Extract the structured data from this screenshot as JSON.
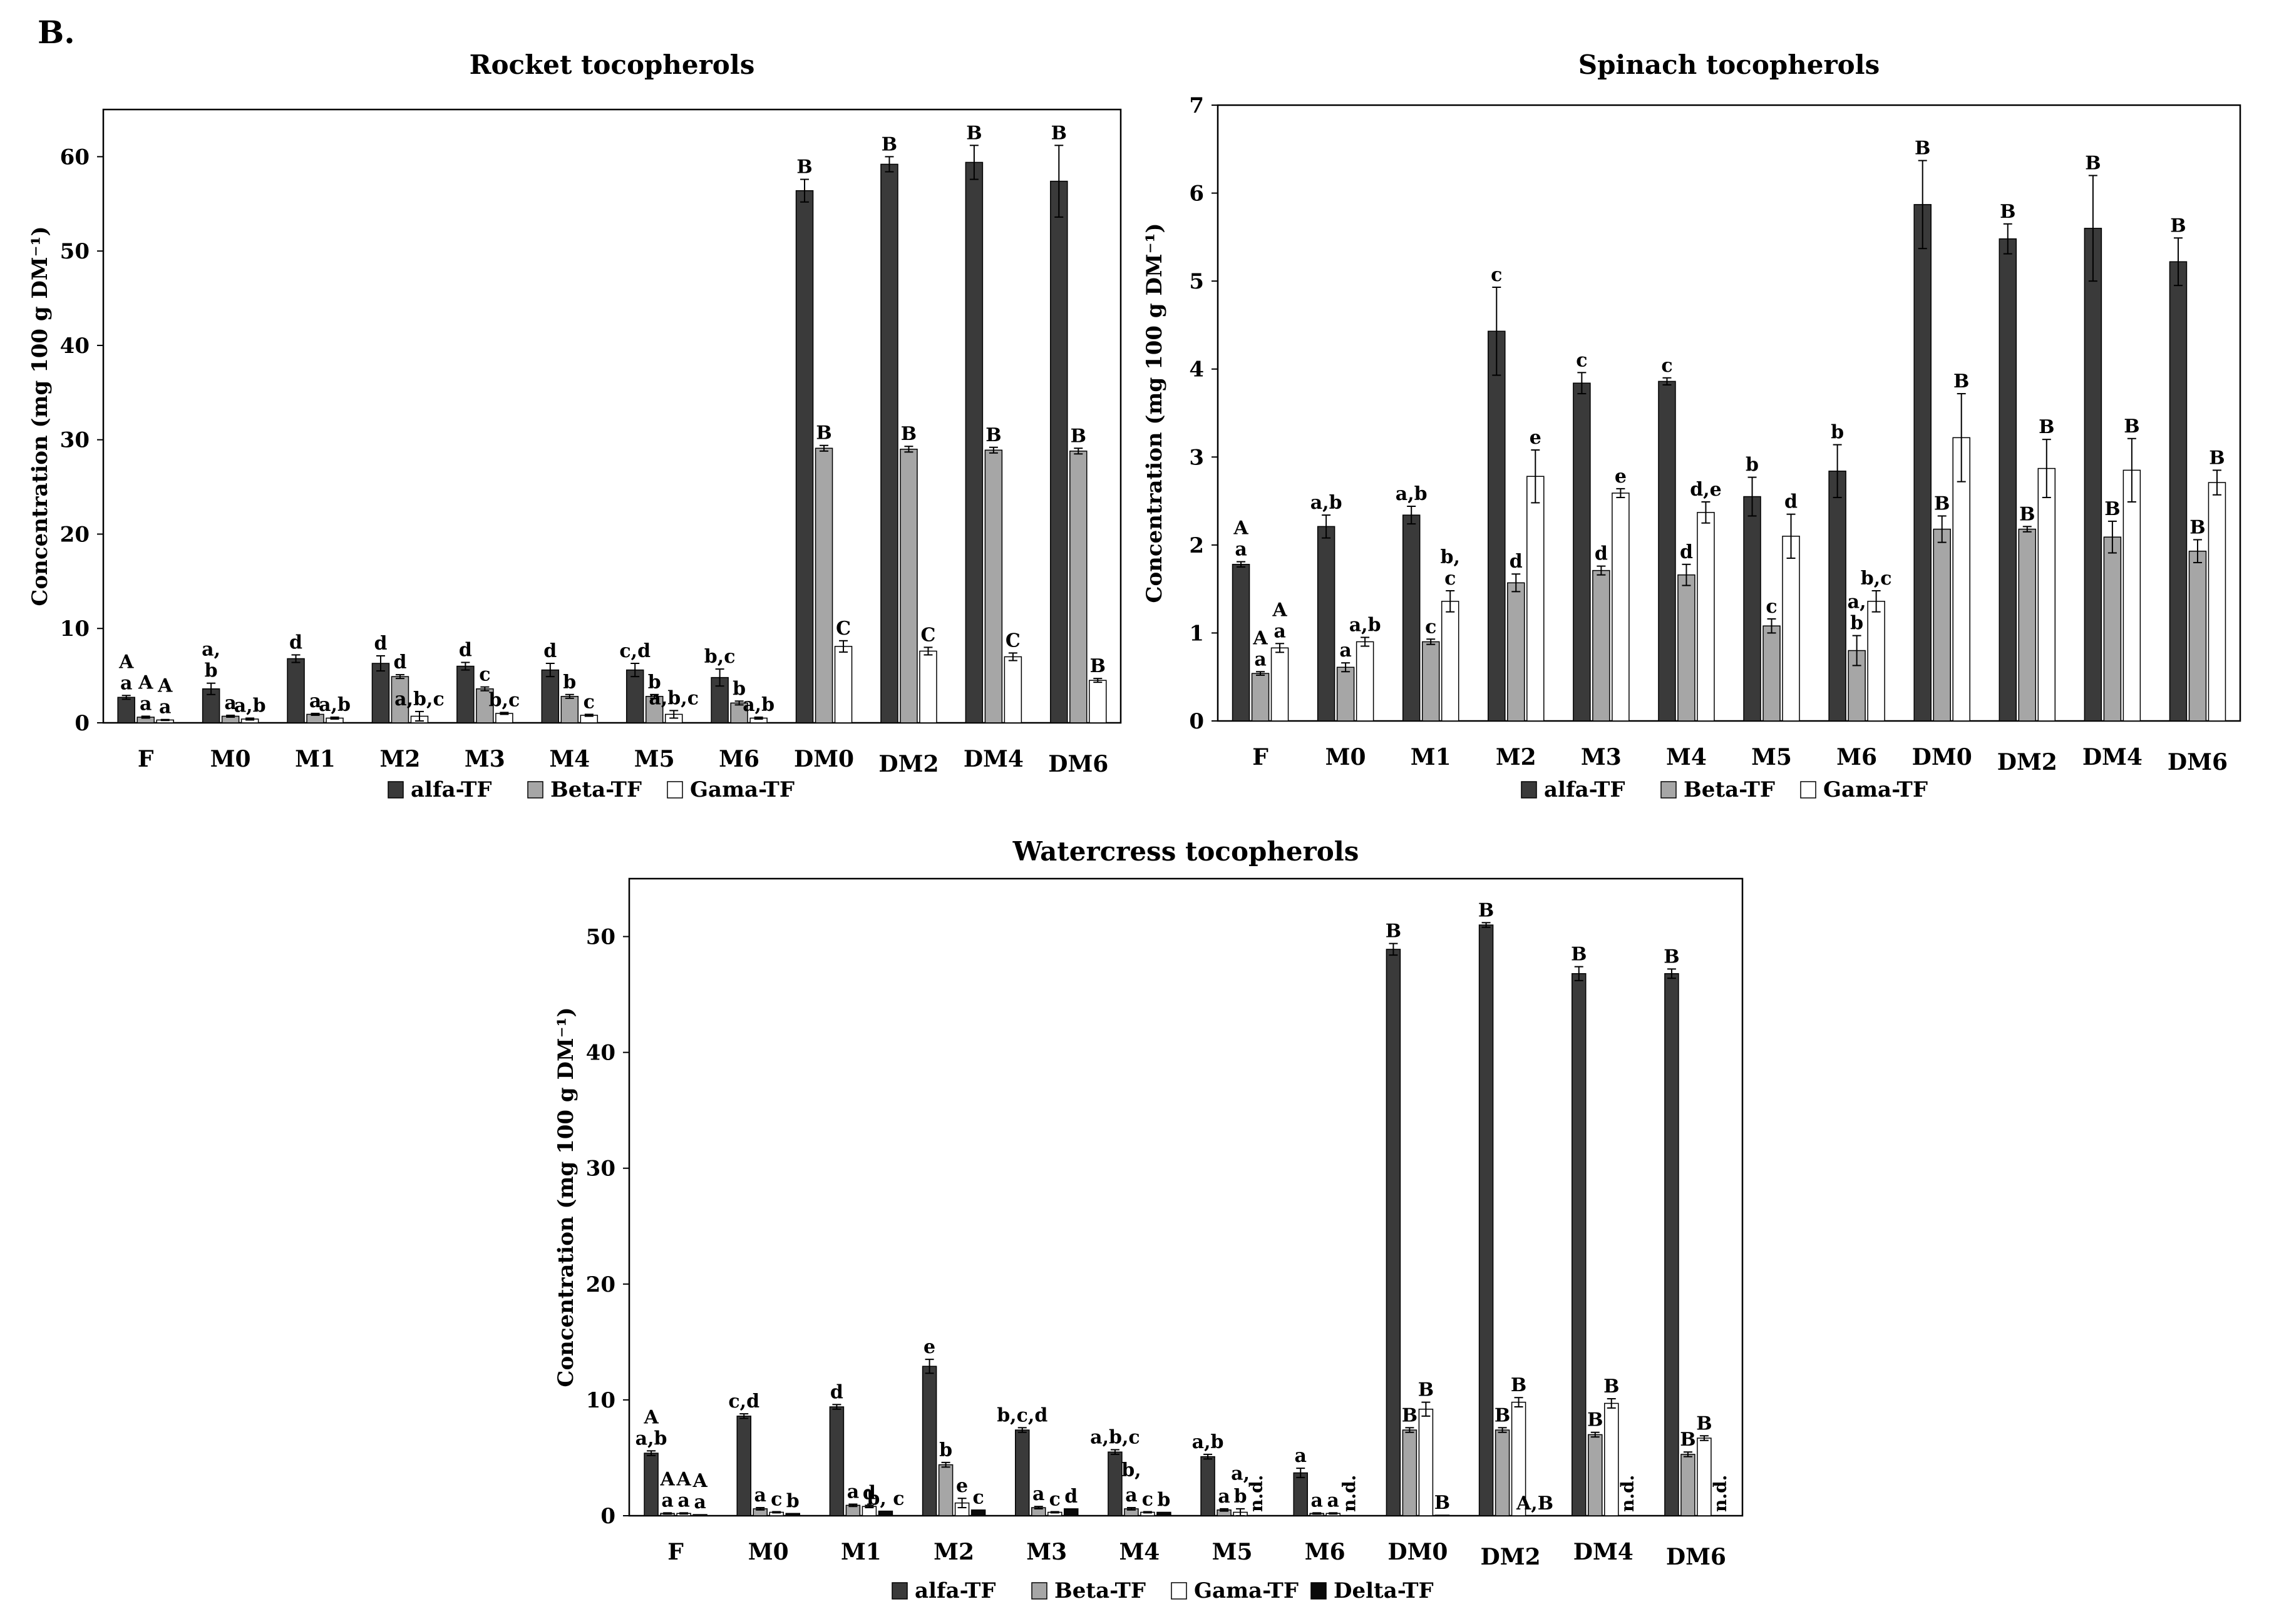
{
  "panel_label": "B.",
  "colors": {
    "alfa": "#3a3a3a",
    "beta": "#a6a6a6",
    "gama": "#ffffff",
    "delta": "#0a0a0a"
  },
  "chart_data": [
    {
      "type": "bar",
      "title": "Rocket tocopherols",
      "ylabel": "Concentration (mg 100 g DM⁻¹)",
      "ylim": [
        0,
        65
      ],
      "yticks": [
        0,
        10,
        20,
        30,
        40,
        50,
        60
      ],
      "categories": [
        "F",
        "M0",
        "M1",
        "M2",
        "M3",
        "M4",
        "M5",
        "M6",
        "DM0",
        "DM2",
        "DM4",
        "DM6"
      ],
      "series": [
        {
          "name": "alfa-TF",
          "values": [
            2.7,
            3.6,
            6.8,
            6.3,
            6.0,
            5.6,
            5.6,
            4.8,
            56.4,
            59.2,
            59.4,
            57.4
          ],
          "errors": [
            0.2,
            0.6,
            0.4,
            0.8,
            0.4,
            0.7,
            0.7,
            0.9,
            1.2,
            0.8,
            1.8,
            3.8
          ],
          "letters": [
            "A\na",
            "a,\nb",
            "d",
            "d",
            "d",
            "d",
            "c,d",
            "b,c",
            "B",
            "B",
            "B",
            "B"
          ]
        },
        {
          "name": "Beta-TF",
          "values": [
            0.6,
            0.7,
            0.9,
            4.9,
            3.6,
            2.8,
            2.8,
            2.1,
            29.1,
            29.0,
            28.9,
            28.8
          ],
          "errors": [
            0.1,
            0.1,
            0.1,
            0.2,
            0.2,
            0.2,
            0.2,
            0.2,
            0.3,
            0.3,
            0.3,
            0.3
          ],
          "letters": [
            "A\na",
            "a",
            "a",
            "d",
            "c",
            "b",
            "b",
            "b",
            "B",
            "B",
            "B",
            "B"
          ]
        },
        {
          "name": "Gama-TF",
          "values": [
            0.3,
            0.4,
            0.5,
            0.7,
            1.0,
            0.8,
            0.9,
            0.5,
            8.1,
            7.6,
            7.0,
            4.5
          ],
          "errors": [
            0.05,
            0.1,
            0.1,
            0.5,
            0.1,
            0.1,
            0.4,
            0.1,
            0.6,
            0.4,
            0.4,
            0.2
          ],
          "letters": [
            "A\na",
            "a,b",
            "a,b",
            "a,b,c",
            "b,c",
            "c",
            "a,b,c",
            "a,b",
            "C",
            "C",
            "C",
            "B"
          ]
        }
      ]
    },
    {
      "type": "bar",
      "title": "Spinach tocopherols",
      "ylabel": "Concentration (mg 100 g DM⁻¹)",
      "ylim": [
        0,
        7
      ],
      "yticks": [
        0,
        1,
        2,
        3,
        4,
        5,
        6,
        7
      ],
      "categories": [
        "F",
        "M0",
        "M1",
        "M2",
        "M3",
        "M4",
        "M5",
        "M6",
        "DM0",
        "DM2",
        "DM4",
        "DM6"
      ],
      "series": [
        {
          "name": "alfa-TF",
          "values": [
            1.78,
            2.21,
            2.34,
            4.43,
            3.84,
            3.86,
            2.55,
            2.84,
            5.87,
            5.48,
            5.6,
            5.22
          ],
          "errors": [
            0.03,
            0.13,
            0.1,
            0.5,
            0.12,
            0.04,
            0.22,
            0.3,
            0.5,
            0.17,
            0.6,
            0.27
          ],
          "letters": [
            "A\na",
            "a,b",
            "a,b",
            "c",
            "c",
            "c",
            "b",
            "b",
            "B",
            "B",
            "B",
            "B"
          ]
        },
        {
          "name": "Beta-TF",
          "values": [
            0.54,
            0.61,
            0.9,
            1.57,
            1.71,
            1.66,
            1.08,
            0.8,
            2.18,
            2.18,
            2.09,
            1.93
          ],
          "errors": [
            0.02,
            0.05,
            0.03,
            0.1,
            0.05,
            0.12,
            0.08,
            0.17,
            0.15,
            0.03,
            0.18,
            0.13
          ],
          "letters": [
            "A\na",
            "a",
            "c",
            "d",
            "d",
            "d",
            "c",
            "a,\nb",
            "B",
            "B",
            "B",
            "B"
          ]
        },
        {
          "name": "Gama-TF",
          "values": [
            0.83,
            0.9,
            1.36,
            2.78,
            2.59,
            2.37,
            2.1,
            1.36,
            3.22,
            2.87,
            2.85,
            2.71
          ],
          "errors": [
            0.05,
            0.05,
            0.12,
            0.3,
            0.05,
            0.12,
            0.25,
            0.12,
            0.5,
            0.33,
            0.36,
            0.14
          ],
          "letters": [
            "A\na",
            "a,b",
            "b,\nc",
            "e",
            "e",
            "d,e",
            "d",
            "b,c",
            "B",
            "B",
            "B",
            "B"
          ]
        }
      ]
    },
    {
      "type": "bar",
      "title": "Watercress tocopherols",
      "ylabel": "Concentration (mg 100 g DM⁻¹)",
      "ylim": [
        0,
        55
      ],
      "yticks": [
        0,
        10,
        20,
        30,
        40,
        50
      ],
      "categories": [
        "F",
        "M0",
        "M1",
        "M2",
        "M3",
        "M4",
        "M5",
        "M6",
        "DM0",
        "DM2",
        "DM4",
        "DM6"
      ],
      "series": [
        {
          "name": "alfa-TF",
          "values": [
            5.4,
            8.6,
            9.4,
            12.9,
            7.4,
            5.5,
            5.1,
            3.7,
            48.9,
            51.0,
            46.8,
            46.8
          ],
          "errors": [
            0.2,
            0.2,
            0.2,
            0.6,
            0.2,
            0.2,
            0.2,
            0.4,
            0.5,
            0.2,
            0.6,
            0.4
          ],
          "letters": [
            "A\na,b",
            "c,d",
            "d",
            "e",
            "b,c,d",
            "a,b,c",
            "a,b",
            "a",
            "B",
            "B",
            "B",
            "B"
          ]
        },
        {
          "name": "Beta-TF",
          "values": [
            0.2,
            0.6,
            0.9,
            4.4,
            0.7,
            0.6,
            0.5,
            0.2,
            7.4,
            7.4,
            7.0,
            5.3
          ],
          "errors": [
            0.05,
            0.1,
            0.1,
            0.2,
            0.1,
            0.1,
            0.1,
            0.05,
            0.2,
            0.2,
            0.2,
            0.2
          ],
          "letters": [
            "A\na",
            "a",
            "a",
            "b",
            "a",
            "a",
            "a",
            "a",
            "B",
            "B",
            "B",
            "B"
          ]
        },
        {
          "name": "Gama-TF",
          "values": [
            0.2,
            0.3,
            0.8,
            1.1,
            0.3,
            0.3,
            0.3,
            0.2,
            9.2,
            9.8,
            9.7,
            6.7
          ],
          "errors": [
            0.05,
            0.05,
            0.1,
            0.4,
            0.05,
            0.05,
            0.3,
            0.05,
            0.6,
            0.4,
            0.4,
            0.2
          ],
          "letters": [
            "A\na",
            "c",
            "d",
            "e",
            "c",
            "c",
            "b",
            "a",
            "B",
            "B",
            "B",
            "B"
          ]
        },
        {
          "name": "Delta-TF",
          "values": [
            0.1,
            0.2,
            0.4,
            0.5,
            0.6,
            0.3,
            null,
            null,
            0.05,
            null,
            null,
            null
          ],
          "errors": [
            0,
            0,
            0,
            0,
            0,
            0,
            0,
            0,
            0,
            0,
            0,
            0
          ],
          "letters": [
            "A\na",
            "b",
            "b, c",
            "c",
            "d",
            "b",
            "n.d.",
            "n.d.",
            "B",
            "A,B",
            "n.d.",
            "n.d."
          ]
        }
      ],
      "extra_labels": [
        {
          "category": "M4",
          "series": "Beta-TF",
          "text": "b,"
        },
        {
          "category": "M5",
          "series": "Gama-TF",
          "text": "a,"
        }
      ]
    }
  ]
}
